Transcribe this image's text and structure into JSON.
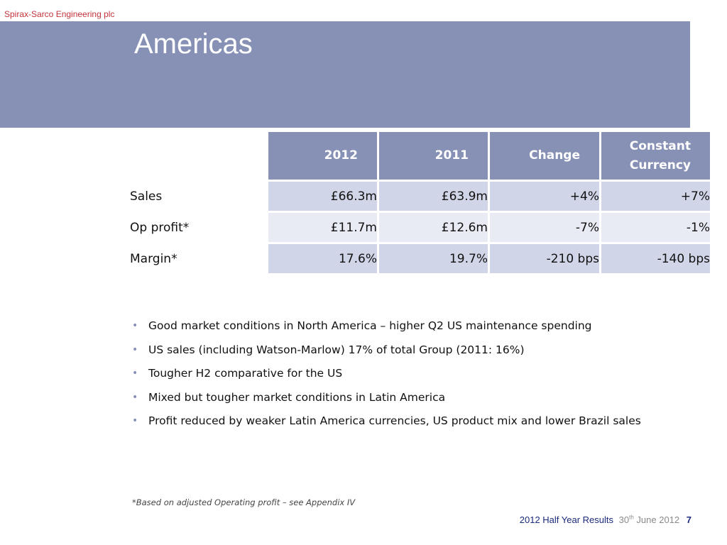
{
  "company": "Spirax-Sarco Engineering plc",
  "title": "Americas",
  "table": {
    "headers": [
      "2012",
      "2011",
      "Change",
      "Constant Currency"
    ],
    "rows": [
      {
        "label": "Sales",
        "values": [
          "£66.3m",
          "£63.9m",
          "+4%",
          "+7%"
        ]
      },
      {
        "label": "Op profit*",
        "values": [
          "£11.7m",
          "£12.6m",
          "-7%",
          "-1%"
        ]
      },
      {
        "label": "Margin*",
        "values": [
          "17.6%",
          "19.7%",
          "-210 bps",
          "-140 bps"
        ]
      }
    ]
  },
  "bullet_glyph": "•",
  "bullets": [
    "Good market conditions in North America – higher Q2 US maintenance spending",
    "US sales (including Watson-Marlow) 17% of total Group (2011: 16%)",
    "Tougher H2 comparative for the US",
    "Mixed but tougher market conditions in Latin America",
    "Profit reduced by weaker Latin America currencies, US product mix and lower Brazil sales"
  ],
  "footnote": "*Based on adjusted Operating profit – see Appendix IV",
  "footer": {
    "report": "2012 Half Year Results",
    "date_day": "30",
    "date_suffix": "th",
    "date_rest": " June 2012",
    "page": "7"
  },
  "colors": {
    "header_band": "#8791b6",
    "company": "#c4343b",
    "row_dark": "#d1d5e8",
    "row_light": "#e9ebf4",
    "footer_text": "#1a2a7a"
  }
}
